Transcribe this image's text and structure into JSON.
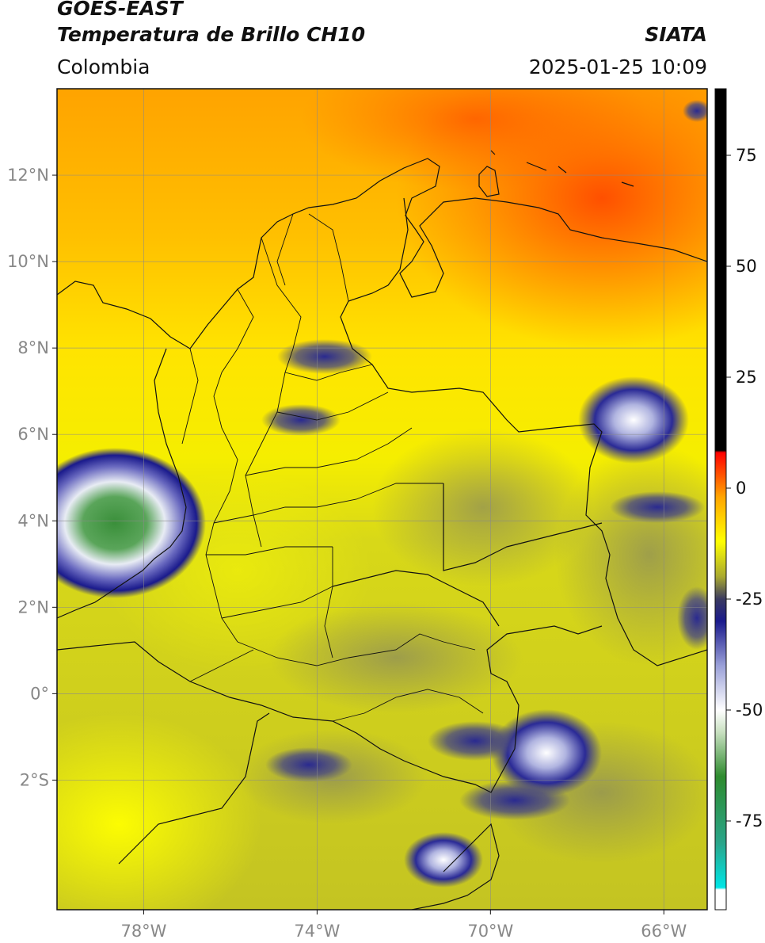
{
  "header": {
    "satellite": "GOES-EAST",
    "product": "Temperatura de Brillo CH10",
    "agency": "SIATA",
    "region": "Colombia",
    "timestamp": "2025-01-25 10:09"
  },
  "map": {
    "lat_range": [
      -5.0,
      14.0
    ],
    "lon_range": [
      -80.0,
      -65.0
    ],
    "lat_ticks": [
      {
        "value": 12,
        "label": "12°N"
      },
      {
        "value": 10,
        "label": "10°N"
      },
      {
        "value": 8,
        "label": "8°N"
      },
      {
        "value": 6,
        "label": "6°N"
      },
      {
        "value": 4,
        "label": "4°N"
      },
      {
        "value": 2,
        "label": "2°N"
      },
      {
        "value": 0,
        "label": "0°"
      },
      {
        "value": -2,
        "label": "2°S"
      }
    ],
    "lon_ticks": [
      {
        "value": -78,
        "label": "78°W"
      },
      {
        "value": -74,
        "label": "74°W"
      },
      {
        "value": -70,
        "label": "70°W"
      },
      {
        "value": -66,
        "label": "66°W"
      }
    ],
    "grid": true
  },
  "colorbar": {
    "range": [
      -95,
      90
    ],
    "ticks": [
      {
        "value": 75,
        "label": "75"
      },
      {
        "value": 50,
        "label": "50"
      },
      {
        "value": 25,
        "label": "25"
      },
      {
        "value": 0,
        "label": "0"
      },
      {
        "value": -25,
        "label": "-25"
      },
      {
        "value": -50,
        "label": "-50"
      },
      {
        "value": -75,
        "label": "-75"
      }
    ],
    "stops": [
      {
        "v": -95,
        "c": "#ffffff"
      },
      {
        "v": -90.5,
        "c": "#ffffff"
      },
      {
        "v": -90,
        "c": "#00e5e5"
      },
      {
        "v": -80,
        "c": "#2aa58a"
      },
      {
        "v": -65,
        "c": "#2e8b2e"
      },
      {
        "v": -55,
        "c": "#c8e0c0"
      },
      {
        "v": -50,
        "c": "#ffffff"
      },
      {
        "v": -40,
        "c": "#9aa0d8"
      },
      {
        "v": -30,
        "c": "#1a1a8c"
      },
      {
        "v": -25,
        "c": "#3a3a60"
      },
      {
        "v": -20,
        "c": "#a8a830"
      },
      {
        "v": -12,
        "c": "#ffff00"
      },
      {
        "v": -2,
        "c": "#ffa500"
      },
      {
        "v": 8,
        "c": "#ff0000"
      },
      {
        "v": 8.5,
        "c": "#000000"
      },
      {
        "v": 90,
        "c": "#000000"
      }
    ]
  },
  "colors": {
    "cold_ocean_north": "#ff6a00",
    "warm_yellow": "#ffe800",
    "olive_south": "#c2c21e",
    "cloud_blue": "#1c1c8a",
    "cloud_green": "#3a8f3a"
  }
}
